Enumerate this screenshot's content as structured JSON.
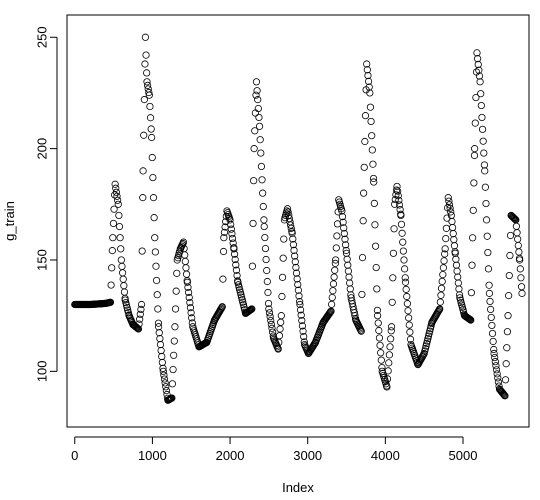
{
  "chart_data": {
    "type": "scatter",
    "title": "",
    "xlabel": "Index",
    "ylabel": "g_train",
    "xlim": [
      -100,
      5850
    ],
    "ylim": [
      75,
      260
    ],
    "xticks": [
      0,
      1000,
      2000,
      3000,
      4000,
      5000
    ],
    "xtick_labels": [
      "0",
      "1000",
      "2000",
      "3000",
      "4000",
      "5000"
    ],
    "yticks": [
      100,
      150,
      200,
      250
    ],
    "ytick_labels": [
      "100",
      "150",
      "200",
      "250"
    ],
    "grid": false,
    "legend": "none",
    "marker": "open-circle",
    "marker_color": "#000000",
    "series": [
      {
        "points": [
          [
            0,
            130
          ],
          [
            200,
            130
          ],
          [
            400,
            130.5
          ],
          [
            460,
            131
          ],
          [
            490,
            160
          ],
          [
            520,
            184
          ],
          [
            560,
            175
          ],
          [
            600,
            150
          ],
          [
            650,
            132
          ],
          [
            700,
            125
          ],
          [
            750,
            121
          ],
          [
            820,
            119
          ],
          [
            860,
            130
          ],
          [
            880,
            190
          ],
          [
            910,
            250
          ],
          [
            930,
            230
          ],
          [
            960,
            224
          ],
          [
            990,
            205
          ],
          [
            1030,
            160
          ],
          [
            1080,
            120
          ],
          [
            1140,
            100
          ],
          [
            1200,
            87
          ],
          [
            1250,
            88
          ],
          [
            1290,
            120
          ],
          [
            1320,
            150
          ],
          [
            1360,
            155
          ],
          [
            1400,
            158
          ],
          [
            1450,
            140
          ],
          [
            1520,
            120
          ],
          [
            1600,
            111
          ],
          [
            1700,
            113
          ],
          [
            1800,
            123
          ],
          [
            1900,
            129
          ],
          [
            1920,
            160
          ],
          [
            1960,
            172
          ],
          [
            2000,
            168
          ],
          [
            2050,
            155
          ],
          [
            2100,
            140
          ],
          [
            2200,
            126
          ],
          [
            2280,
            128
          ],
          [
            2310,
            200
          ],
          [
            2340,
            230
          ],
          [
            2380,
            210
          ],
          [
            2440,
            165
          ],
          [
            2500,
            128
          ],
          [
            2560,
            115
          ],
          [
            2620,
            110
          ],
          [
            2660,
            125
          ],
          [
            2700,
            168
          ],
          [
            2740,
            173
          ],
          [
            2800,
            162
          ],
          [
            2900,
            130
          ],
          [
            2960,
            112
          ],
          [
            3010,
            108
          ],
          [
            3100,
            113
          ],
          [
            3200,
            122
          ],
          [
            3300,
            127
          ],
          [
            3360,
            150
          ],
          [
            3400,
            177
          ],
          [
            3440,
            172
          ],
          [
            3500,
            153
          ],
          [
            3560,
            133
          ],
          [
            3620,
            123
          ],
          [
            3690,
            118
          ],
          [
            3720,
            180
          ],
          [
            3760,
            238
          ],
          [
            3800,
            225
          ],
          [
            3850,
            185
          ],
          [
            3900,
            125
          ],
          [
            3960,
            100
          ],
          [
            4020,
            93
          ],
          [
            4080,
            120
          ],
          [
            4120,
            175
          ],
          [
            4150,
            183
          ],
          [
            4200,
            170
          ],
          [
            4260,
            140
          ],
          [
            4330,
            112
          ],
          [
            4420,
            103
          ],
          [
            4500,
            108
          ],
          [
            4600,
            122
          ],
          [
            4700,
            128
          ],
          [
            4770,
            155
          ],
          [
            4810,
            178
          ],
          [
            4850,
            170
          ],
          [
            4900,
            153
          ],
          [
            4960,
            133
          ],
          [
            5020,
            125
          ],
          [
            5100,
            123
          ],
          [
            5150,
            200
          ],
          [
            5180,
            243
          ],
          [
            5220,
            230
          ],
          [
            5280,
            190
          ],
          [
            5340,
            135
          ],
          [
            5400,
            108
          ],
          [
            5470,
            92
          ],
          [
            5540,
            89
          ],
          [
            5580,
            125
          ],
          [
            5620,
            170
          ],
          [
            5680,
            168
          ],
          [
            5730,
            150
          ],
          [
            5760,
            135
          ]
        ]
      }
    ]
  }
}
